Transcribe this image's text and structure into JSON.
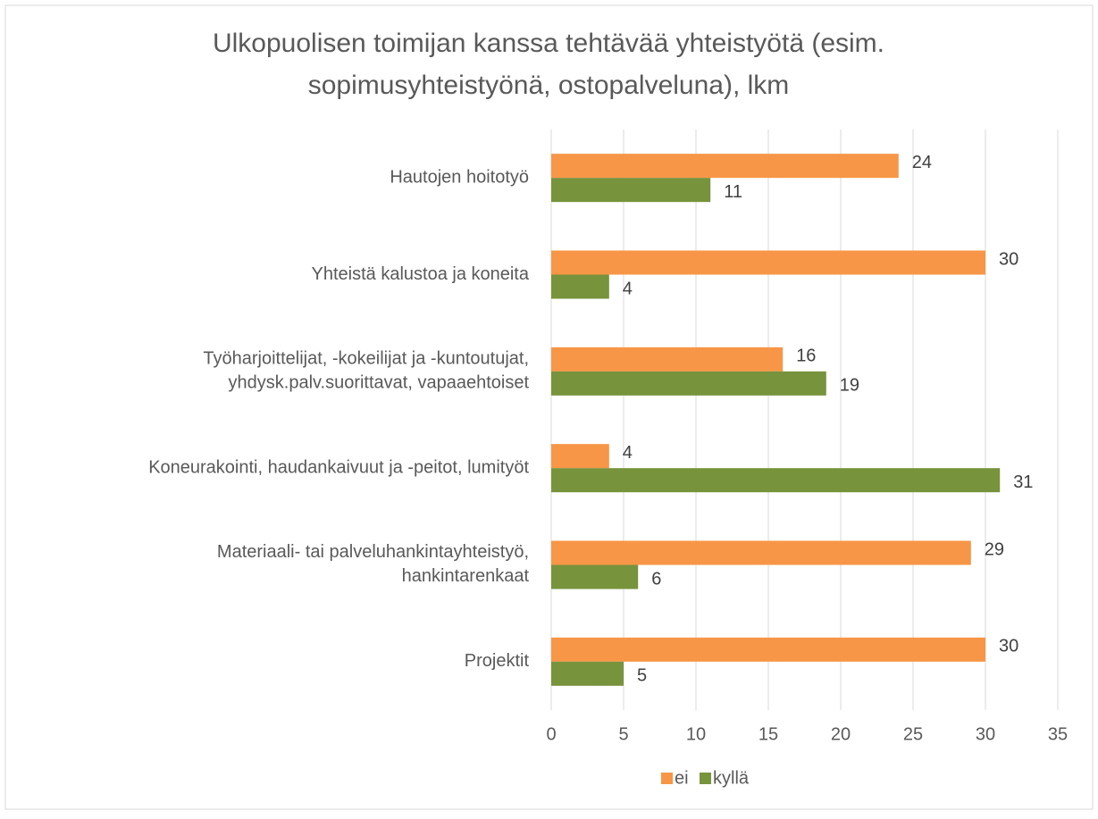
{
  "chart_data": {
    "type": "bar",
    "orientation": "horizontal",
    "title": "Ulkopuolisen toimijan kanssa tehtävää yhteistyötä (esim.\nsopimusyhteistyönä, ostopalveluna), lkm",
    "categories": [
      "Hautojen hoitotyö",
      "Yhteistä kalustoa ja koneita",
      "Työharjoittelijat, -kokeilijat ja -kuntoutujat,\nyhdysk.palv.suorittavat, vapaaehtoiset",
      "Koneurakointi, haudankaivuut ja -peitot, lumityöt",
      "Materiaali- tai palveluhankintayhteistyö,\nhankintarenkaat",
      "Projektit"
    ],
    "series": [
      {
        "name": "ei",
        "color": "#f79646",
        "values": [
          24,
          30,
          16,
          4,
          29,
          30
        ]
      },
      {
        "name": "kyllä",
        "color": "#77933c",
        "values": [
          11,
          4,
          19,
          31,
          6,
          5
        ]
      }
    ],
    "xlim": [
      0,
      35
    ],
    "xticks": [
      0,
      5,
      10,
      15,
      20,
      25,
      30,
      35
    ],
    "grid": true,
    "legend": "bottom"
  }
}
